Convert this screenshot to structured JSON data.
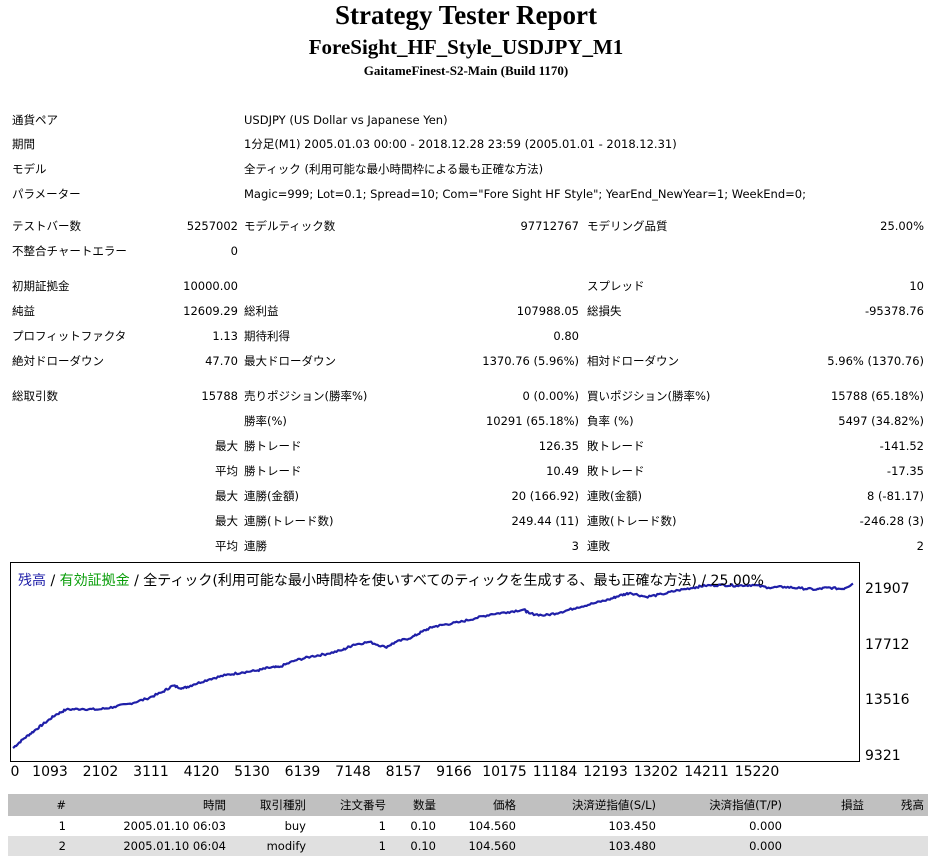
{
  "header": {
    "title": "Strategy Tester Report",
    "ea_name": "ForeSight_HF_Style_USDJPY_M1",
    "server": "GaitameFinest-S2-Main (Build 1170)"
  },
  "info": {
    "pair_label": "通貨ペア",
    "pair_value": "USDJPY (US Dollar vs Japanese Yen)",
    "period_label": "期間",
    "period_value": "1分足(M1) 2005.01.03 00:00 - 2018.12.28 23:59 (2005.01.01 - 2018.12.31)",
    "model_label": "モデル",
    "model_value": "全ティック (利用可能な最小時間枠による最も正確な方法)",
    "params_label": "パラメーター",
    "params_value": "Magic=999; Lot=0.1; Spread=10; Com=\"Fore Sight HF Style\"; YearEnd_NewYear=1; WeekEnd=0;"
  },
  "stats": {
    "bars_label": "テストバー数",
    "bars": "5257002",
    "ticks_label": "モデルティック数",
    "ticks": "97712767",
    "quality_label": "モデリング品質",
    "quality": "25.00%",
    "mismatch_label": "不整合チャートエラー",
    "mismatch": "0",
    "deposit_label": "初期証拠金",
    "deposit": "10000.00",
    "spread_label": "スプレッド",
    "spread": "10",
    "net_label": "純益",
    "net": "12609.29",
    "gross_profit_label": "総利益",
    "gross_profit": "107988.05",
    "gross_loss_label": "総損失",
    "gross_loss": "-95378.76",
    "pf_label": "プロフィットファクタ",
    "pf": "1.13",
    "expected_label": "期待利得",
    "expected": "0.80",
    "abs_dd_label": "絶対ドローダウン",
    "abs_dd": "47.70",
    "max_dd_label": "最大ドローダウン",
    "max_dd": "1370.76 (5.96%)",
    "rel_dd_label": "相対ドローダウン",
    "rel_dd": "5.96% (1370.76)",
    "trades_label": "総取引数",
    "trades": "15788",
    "short_label": "売りポジション(勝率%)",
    "short": "0 (0.00%)",
    "long_label": "買いポジション(勝率%)",
    "long": "15788 (65.18%)",
    "win_rate_label": "勝率(%)",
    "win_rate": "10291 (65.18%)",
    "loss_rate_label": "負率 (%)",
    "loss_rate": "5497 (34.82%)",
    "largest_prefix": "最大",
    "largest_win_label": "勝トレード",
    "largest_win": "126.35",
    "largest_loss_label": "敗トレード",
    "largest_loss": "-141.52",
    "average_prefix": "平均",
    "avg_win_label": "勝トレード",
    "avg_win": "10.49",
    "avg_loss_label": "敗トレード",
    "avg_loss": "-17.35",
    "max_prefix": "最大",
    "max_cons_wins_money_label": "連勝(金額)",
    "max_cons_wins_money": "20 (166.92)",
    "max_cons_losses_money_label": "連敗(金額)",
    "max_cons_losses_money": "8 (-81.17)",
    "max_prefix2": "最大",
    "max_cons_profit_label": "連勝(トレード数)",
    "max_cons_profit": "249.44 (11)",
    "max_cons_loss_label": "連敗(トレード数)",
    "max_cons_loss": "-246.28 (3)",
    "avg_prefix2": "平均",
    "avg_cons_wins_label": "連勝",
    "avg_cons_wins": "3",
    "avg_cons_losses_label": "連敗",
    "avg_cons_losses": "2"
  },
  "chart_data": {
    "type": "line",
    "legend_balance": "残高",
    "legend_sep1": " / ",
    "legend_equity": "有効証拠金",
    "legend_rest": " / 全ティック(利用可能な最小時間枠を使いすべてのティックを生成する、最も正確な方法) / 25.00%",
    "colors": {
      "balance": "#1f1fa8",
      "equity": "#0a9e0a"
    },
    "y_ticks": [
      "21907",
      "17712",
      "13516",
      "9321"
    ],
    "y_tick_values": [
      21907,
      17712,
      13516,
      9321
    ],
    "x_ticks": [
      "0",
      "1093",
      "2102",
      "3111",
      "4120",
      "5130",
      "6139",
      "7148",
      "8157",
      "9166",
      "10175",
      "11184",
      "12193",
      "13202",
      "14211",
      "15220"
    ],
    "xlim": [
      0,
      15788
    ],
    "ylim": [
      9321,
      23200
    ],
    "series": [
      {
        "values": [
          [
            0,
            10000
          ],
          [
            200,
            10700
          ],
          [
            400,
            11300
          ],
          [
            600,
            11900
          ],
          [
            800,
            12500
          ],
          [
            1000,
            12900
          ],
          [
            1300,
            12950
          ],
          [
            1600,
            12900
          ],
          [
            1900,
            13100
          ],
          [
            2200,
            13350
          ],
          [
            2500,
            13700
          ],
          [
            2800,
            14200
          ],
          [
            3000,
            14700
          ],
          [
            3200,
            14500
          ],
          [
            3400,
            14800
          ],
          [
            3700,
            15200
          ],
          [
            4000,
            15500
          ],
          [
            4300,
            15700
          ],
          [
            4600,
            15850
          ],
          [
            4800,
            16050
          ],
          [
            5000,
            16100
          ],
          [
            5300,
            16600
          ],
          [
            5600,
            16900
          ],
          [
            5900,
            17100
          ],
          [
            6200,
            17400
          ],
          [
            6400,
            17800
          ],
          [
            6700,
            18000
          ],
          [
            7000,
            17600
          ],
          [
            7200,
            18000
          ],
          [
            7500,
            18350
          ],
          [
            7700,
            18800
          ],
          [
            7900,
            19150
          ],
          [
            8100,
            19300
          ],
          [
            8400,
            19500
          ],
          [
            8700,
            19800
          ],
          [
            9000,
            20100
          ],
          [
            9300,
            20250
          ],
          [
            9600,
            20450
          ],
          [
            9700,
            20150
          ],
          [
            10000,
            20000
          ],
          [
            10300,
            20250
          ],
          [
            10600,
            20600
          ],
          [
            10900,
            20900
          ],
          [
            11200,
            21200
          ],
          [
            11400,
            21500
          ],
          [
            11600,
            21700
          ],
          [
            11900,
            21400
          ],
          [
            12200,
            21600
          ],
          [
            12500,
            21900
          ],
          [
            12800,
            22100
          ],
          [
            13000,
            22250
          ],
          [
            13300,
            22300
          ],
          [
            13600,
            22250
          ],
          [
            13900,
            22300
          ],
          [
            14200,
            22100
          ],
          [
            14500,
            22150
          ],
          [
            14800,
            22050
          ],
          [
            15100,
            21950
          ],
          [
            15300,
            22100
          ],
          [
            15600,
            22000
          ],
          [
            15788,
            22400
          ]
        ]
      }
    ]
  },
  "table": {
    "headers": [
      "#",
      "時間",
      "取引種別",
      "注文番号",
      "数量",
      "価格",
      "決済逆指値(S/L)",
      "決済指値(T/P)",
      "損益",
      "残高"
    ],
    "rows": [
      [
        "1",
        "2005.01.10 06:03",
        "buy",
        "1",
        "0.10",
        "104.560",
        "103.450",
        "0.000",
        "",
        ""
      ],
      [
        "2",
        "2005.01.10 06:04",
        "modify",
        "1",
        "0.10",
        "104.560",
        "103.480",
        "0.000",
        "",
        ""
      ]
    ]
  }
}
